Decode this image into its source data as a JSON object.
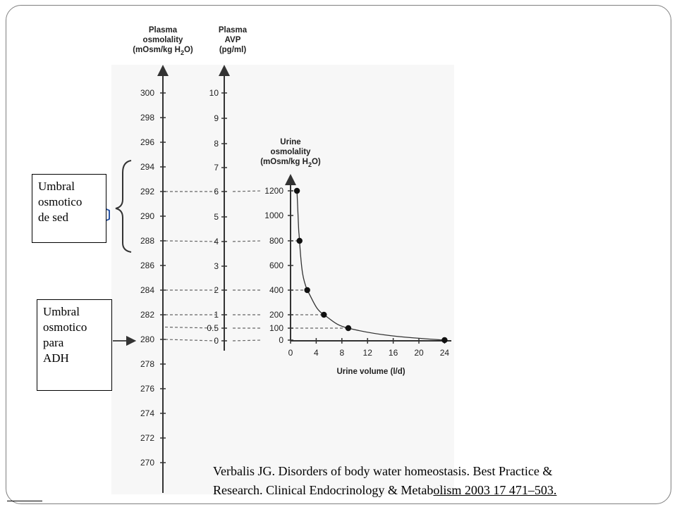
{
  "chart_data": {
    "type": "nomogram",
    "axes": {
      "plasma_osmolality": {
        "title_lines": [
          "Plasma",
          "osmolality",
          "(mOsm/kg H",
          "2",
          "O)"
        ],
        "ticks": [
          300,
          298,
          296,
          294,
          292,
          290,
          288,
          286,
          284,
          282,
          280,
          278,
          276,
          274,
          272,
          270
        ],
        "range": [
          270,
          300
        ]
      },
      "plasma_avp": {
        "title_lines": [
          "Plasma",
          "AVP",
          "(pg/ml)"
        ],
        "ticks": [
          10,
          9,
          8,
          7,
          6,
          5,
          4,
          3,
          2,
          1,
          0
        ],
        "extra_ticks": [
          0.5
        ],
        "range": [
          0,
          10
        ]
      }
    },
    "correspondence": [
      {
        "plasma_osmolality": 292,
        "plasma_avp": 6,
        "urine_osmolality": 1200
      },
      {
        "plasma_osmolality": 288,
        "plasma_avp": 4,
        "urine_osmolality": 800
      },
      {
        "plasma_osmolality": 284,
        "plasma_avp": 2,
        "urine_osmolality": 400
      },
      {
        "plasma_osmolality": 282,
        "plasma_avp": 1,
        "urine_osmolality": 200
      },
      {
        "plasma_osmolality": 281,
        "plasma_avp": 0.5,
        "urine_osmolality": 100
      },
      {
        "plasma_osmolality": 280,
        "plasma_avp": 0,
        "urine_osmolality": 0
      }
    ],
    "urine_plot": {
      "type": "line",
      "title_lines": [
        "Urine",
        "osmolality",
        "(mOsm/kg H",
        "2",
        "O)"
      ],
      "xlabel": "Urine volume (l/d)",
      "x_ticks": [
        0,
        4,
        8,
        12,
        16,
        20,
        24
      ],
      "y_ticks": [
        1200,
        1000,
        800,
        600,
        400,
        200,
        100,
        0
      ],
      "xlim": [
        0,
        24
      ],
      "ylim": [
        0,
        1200
      ],
      "points": [
        {
          "x": 1,
          "y": 1200
        },
        {
          "x": 1.4,
          "y": 800
        },
        {
          "x": 2.6,
          "y": 400
        },
        {
          "x": 5.2,
          "y": 200
        },
        {
          "x": 9,
          "y": 100
        },
        {
          "x": 24,
          "y": 0
        }
      ]
    }
  },
  "callouts": {
    "thirst": [
      "Umbral",
      "osmotico",
      "de sed"
    ],
    "adh": [
      "Umbral",
      "osmotico",
      "para",
      "ADH"
    ]
  },
  "citation": {
    "line1": "Verbalis JG. Disorders of body water homeostasis. Best Practice &",
    "line2_plain": "Research. Clinical Endocrinology & Metab",
    "line2_underlined": "olism 2003 17 471–503."
  }
}
